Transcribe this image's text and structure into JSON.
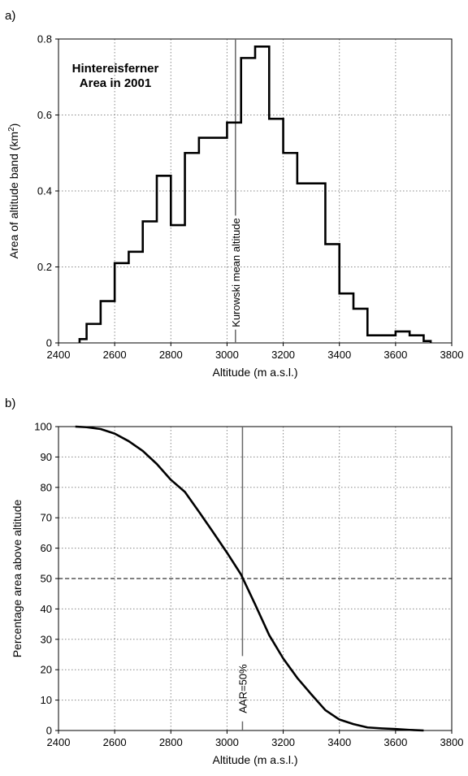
{
  "chart_data": [
    {
      "panel_label": "a)",
      "type": "line",
      "style": "step",
      "annotation_lines": [
        "Hintereisferner",
        "Area in 2001"
      ],
      "vline": {
        "x": 3030,
        "label": "Kurowski mean altitude"
      },
      "xlabel": "Altitude (m a.s.l.)",
      "ylabel_parts": [
        "Area of altitude band (km",
        "2",
        ")"
      ],
      "xlim": [
        2400,
        3800
      ],
      "ylim": [
        0,
        0.8
      ],
      "xticks": [
        "2400",
        "2600",
        "2800",
        "3000",
        "3200",
        "3400",
        "3600",
        "3800"
      ],
      "yticks": [
        "0",
        "0.2",
        "0.4",
        "0.6",
        "0.8"
      ],
      "grid": true,
      "bins": [
        {
          "x0": 2475,
          "x1": 2500,
          "value": 0.01
        },
        {
          "x0": 2500,
          "x1": 2550,
          "value": 0.05
        },
        {
          "x0": 2550,
          "x1": 2600,
          "value": 0.11
        },
        {
          "x0": 2600,
          "x1": 2650,
          "value": 0.21
        },
        {
          "x0": 2650,
          "x1": 2700,
          "value": 0.24
        },
        {
          "x0": 2700,
          "x1": 2750,
          "value": 0.32
        },
        {
          "x0": 2750,
          "x1": 2800,
          "value": 0.44
        },
        {
          "x0": 2800,
          "x1": 2850,
          "value": 0.31
        },
        {
          "x0": 2850,
          "x1": 2900,
          "value": 0.5
        },
        {
          "x0": 2900,
          "x1": 2950,
          "value": 0.54
        },
        {
          "x0": 2950,
          "x1": 3000,
          "value": 0.54
        },
        {
          "x0": 3000,
          "x1": 3050,
          "value": 0.58
        },
        {
          "x0": 3050,
          "x1": 3100,
          "value": 0.75
        },
        {
          "x0": 3100,
          "x1": 3150,
          "value": 0.78
        },
        {
          "x0": 3150,
          "x1": 3200,
          "value": 0.59
        },
        {
          "x0": 3200,
          "x1": 3250,
          "value": 0.5
        },
        {
          "x0": 3250,
          "x1": 3300,
          "value": 0.42
        },
        {
          "x0": 3300,
          "x1": 3350,
          "value": 0.42
        },
        {
          "x0": 3350,
          "x1": 3400,
          "value": 0.26
        },
        {
          "x0": 3400,
          "x1": 3450,
          "value": 0.13
        },
        {
          "x0": 3450,
          "x1": 3500,
          "value": 0.09
        },
        {
          "x0": 3500,
          "x1": 3550,
          "value": 0.02
        },
        {
          "x0": 3550,
          "x1": 3600,
          "value": 0.02
        },
        {
          "x0": 3600,
          "x1": 3650,
          "value": 0.03
        },
        {
          "x0": 3650,
          "x1": 3700,
          "value": 0.02
        },
        {
          "x0": 3700,
          "x1": 3725,
          "value": 0.005
        }
      ]
    },
    {
      "panel_label": "b)",
      "type": "line",
      "vline": {
        "x": 3055,
        "label": "AAR=50%"
      },
      "hline": {
        "y": 50
      },
      "xlabel": "Altitude (m a.s.l.)",
      "ylabel": "Percentage area above altitude",
      "xlim": [
        2400,
        3800
      ],
      "ylim": [
        0,
        100
      ],
      "xticks": [
        "2400",
        "2600",
        "2800",
        "3000",
        "3200",
        "3400",
        "3600",
        "3800"
      ],
      "yticks": [
        "0",
        "10",
        "20",
        "30",
        "40",
        "50",
        "60",
        "70",
        "80",
        "90",
        "100"
      ],
      "grid": true,
      "x": [
        2460,
        2500,
        2550,
        2600,
        2650,
        2700,
        2750,
        2800,
        2850,
        2900,
        2950,
        3000,
        3050,
        3100,
        3150,
        3200,
        3250,
        3300,
        3350,
        3400,
        3450,
        3500,
        3550,
        3600,
        3650,
        3700
      ],
      "y": [
        100,
        99.8,
        99.2,
        97.7,
        95.2,
        92.0,
        87.7,
        82.5,
        78.5,
        72.0,
        65.3,
        58.5,
        51.3,
        41.5,
        31.4,
        23.7,
        17.3,
        11.9,
        6.7,
        3.6,
        2.1,
        1.0,
        0.7,
        0.5,
        0.2,
        0.0
      ]
    }
  ]
}
